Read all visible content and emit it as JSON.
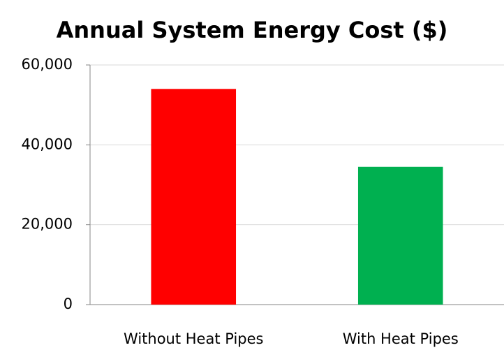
{
  "chart_data": {
    "type": "bar",
    "title": "Annual System Energy Cost ($)",
    "categories": [
      "Without Heat Pipes",
      "With Heat Pipes"
    ],
    "values": [
      54000,
      34500
    ],
    "colors": [
      "#ff0000",
      "#00b050"
    ],
    "ylim": [
      0,
      60000
    ],
    "yticks": [
      0,
      {
        "value": 20000,
        "label": "20,000"
      },
      {
        "value": 40000,
        "label": "40,000"
      },
      {
        "value": 60000,
        "label": "60,000"
      }
    ],
    "grid": true
  }
}
